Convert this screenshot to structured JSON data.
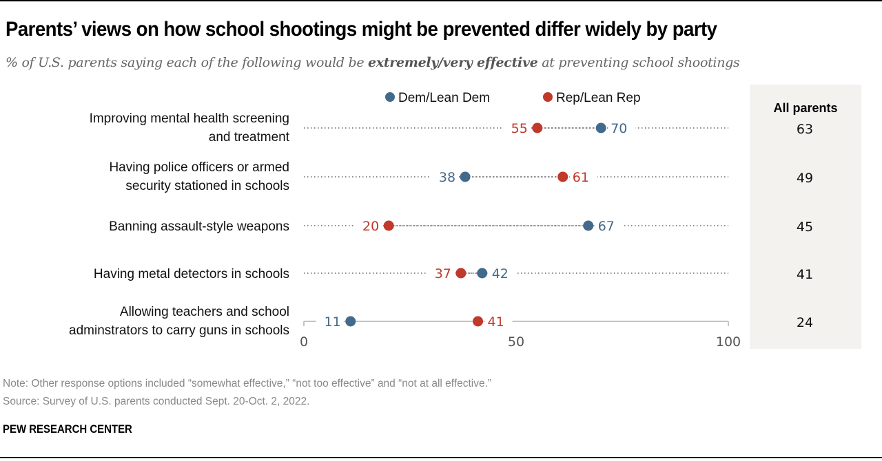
{
  "title": "Parents’ views on how school shootings might be prevented differ widely by party",
  "subtitle": {
    "pre": "% of U.S. parents saying each of the following would be ",
    "bold": "extremely/very effective",
    "post": " at preventing school shootings"
  },
  "note": "Note: Other response options included “somewhat effective,” “not too effective” and “not at all effective.”",
  "source": "Source: Survey of U.S. parents conducted Sept. 20-Oct. 2, 2022.",
  "brand": "PEW RESEARCH CENTER",
  "colors": {
    "dem": "#436a8a",
    "rep": "#c0392b",
    "panel": "#f3f2ef"
  },
  "chart_data": {
    "type": "scatter",
    "subtype": "dot-plot",
    "title": "Parents’ views on how school shootings might be prevented differ widely by party",
    "xlabel": "",
    "ylabel": "",
    "xlim": [
      0,
      100
    ],
    "xticks": [
      0,
      50,
      100
    ],
    "legend": {
      "placement": "top-center",
      "entries": [
        "Dem/Lean Dem",
        "Rep/Lean Rep"
      ]
    },
    "categories": [
      [
        "Improving mental health screening",
        "and treatment"
      ],
      [
        "Having police officers or armed",
        "security stationed in schools"
      ],
      [
        "Banning assault-style weapons"
      ],
      [
        "Having metal detectors in schools"
      ],
      [
        "Allowing teachers and school",
        "adminstrators to carry guns in schools"
      ]
    ],
    "series": [
      {
        "name": "Dem/Lean Dem",
        "key": "dem",
        "values": [
          70,
          38,
          67,
          42,
          11
        ]
      },
      {
        "name": "Rep/Lean Rep",
        "key": "rep",
        "values": [
          55,
          61,
          20,
          37,
          41
        ]
      }
    ],
    "all_parents": {
      "header": "All parents",
      "values": [
        63,
        49,
        45,
        41,
        24
      ]
    }
  }
}
